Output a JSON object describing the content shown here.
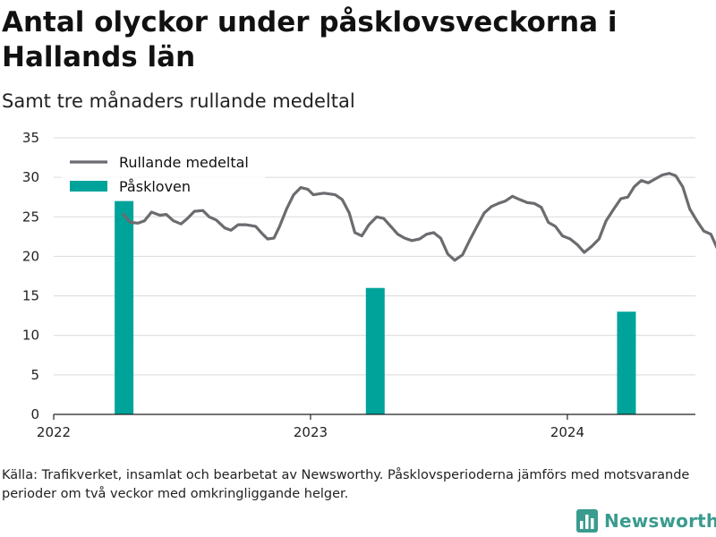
{
  "title": "Antal olyckor under påsklovsveckorna i Hallands län",
  "subtitle": "Samt tre månaders rullande medeltal",
  "source": "Källa: Trafikverket, insamlat och bearbetat av Newsworthy. Påsklovsperioderna jämförs med motsvarande perioder om två veckor med omkringliggande helger.",
  "logo": {
    "text": "Newsworthy",
    "icon": "bar-chart-logo-icon"
  },
  "colors": {
    "line": "#6b6b70",
    "bars": "#00a39a",
    "bar_highlight": "#cfe9e7",
    "grid": "#d9d9d9",
    "logo": "#3a9b8f"
  },
  "chart_data": {
    "type": "bar+line",
    "ylim": [
      0,
      35
    ],
    "yticks": [
      0,
      5,
      10,
      15,
      20,
      25,
      30,
      35
    ],
    "xlim": [
      "2022-01-01",
      "2024-07-01"
    ],
    "xticks": [
      {
        "date": "2022-01-01",
        "label": "2022"
      },
      {
        "date": "2023-01-01",
        "label": "2023"
      },
      {
        "date": "2024-01-01",
        "label": "2024"
      }
    ],
    "grid": true,
    "legend": {
      "position": "top-left",
      "entries": [
        {
          "label": "Rullande medeltal",
          "kind": "line"
        },
        {
          "label": "Påskloven",
          "kind": "bar"
        }
      ]
    },
    "bars": {
      "name": "Påskloven",
      "points": [
        {
          "date": "2022-04-11",
          "value": 27
        },
        {
          "date": "2023-04-03",
          "value": 16
        },
        {
          "date": "2024-03-25",
          "value": 13
        }
      ]
    },
    "line": {
      "name": "Rullande medeltal",
      "points": [
        [
          "2022-04-10",
          25.3
        ],
        [
          "2022-04-20",
          24.3
        ],
        [
          "2022-05-01",
          24.2
        ],
        [
          "2022-05-10",
          24.5
        ],
        [
          "2022-05-20",
          25.6
        ],
        [
          "2022-06-01",
          25.2
        ],
        [
          "2022-06-10",
          25.3
        ],
        [
          "2022-06-20",
          24.5
        ],
        [
          "2022-07-01",
          24.1
        ],
        [
          "2022-07-10",
          24.8
        ],
        [
          "2022-07-20",
          25.7
        ],
        [
          "2022-08-01",
          25.8
        ],
        [
          "2022-08-10",
          25.0
        ],
        [
          "2022-08-20",
          24.6
        ],
        [
          "2022-09-01",
          23.6
        ],
        [
          "2022-09-10",
          23.3
        ],
        [
          "2022-09-20",
          24.0
        ],
        [
          "2022-10-01",
          24.0
        ],
        [
          "2022-10-15",
          23.8
        ],
        [
          "2022-10-25",
          22.8
        ],
        [
          "2022-11-01",
          22.2
        ],
        [
          "2022-11-10",
          22.3
        ],
        [
          "2022-11-18",
          23.8
        ],
        [
          "2022-11-28",
          26.0
        ],
        [
          "2022-12-08",
          27.8
        ],
        [
          "2022-12-18",
          28.7
        ],
        [
          "2022-12-28",
          28.5
        ],
        [
          "2023-01-05",
          27.8
        ],
        [
          "2023-01-20",
          28.0
        ],
        [
          "2023-02-05",
          27.8
        ],
        [
          "2023-02-15",
          27.2
        ],
        [
          "2023-02-25",
          25.5
        ],
        [
          "2023-03-05",
          23.0
        ],
        [
          "2023-03-15",
          22.6
        ],
        [
          "2023-03-25",
          24.0
        ],
        [
          "2023-04-05",
          25.0
        ],
        [
          "2023-04-15",
          24.8
        ],
        [
          "2023-04-25",
          23.8
        ],
        [
          "2023-05-05",
          22.8
        ],
        [
          "2023-05-15",
          22.3
        ],
        [
          "2023-05-25",
          22.0
        ],
        [
          "2023-06-05",
          22.2
        ],
        [
          "2023-06-15",
          22.8
        ],
        [
          "2023-06-25",
          23.0
        ],
        [
          "2023-07-05",
          22.3
        ],
        [
          "2023-07-15",
          20.3
        ],
        [
          "2023-07-25",
          19.5
        ],
        [
          "2023-08-05",
          20.2
        ],
        [
          "2023-08-15",
          22.0
        ],
        [
          "2023-08-25",
          23.7
        ],
        [
          "2023-09-05",
          25.5
        ],
        [
          "2023-09-15",
          26.3
        ],
        [
          "2023-09-25",
          26.7
        ],
        [
          "2023-10-05",
          27.0
        ],
        [
          "2023-10-15",
          27.6
        ],
        [
          "2023-10-25",
          27.2
        ],
        [
          "2023-11-05",
          26.8
        ],
        [
          "2023-11-15",
          26.7
        ],
        [
          "2023-11-25",
          26.2
        ],
        [
          "2023-12-05",
          24.3
        ],
        [
          "2023-12-15",
          23.8
        ],
        [
          "2023-12-25",
          22.6
        ],
        [
          "2024-01-05",
          22.2
        ],
        [
          "2024-01-15",
          21.5
        ],
        [
          "2024-01-25",
          20.5
        ],
        [
          "2024-02-05",
          21.3
        ],
        [
          "2024-02-15",
          22.2
        ],
        [
          "2024-02-25",
          24.5
        ],
        [
          "2024-03-07",
          26.0
        ],
        [
          "2024-03-17",
          27.3
        ],
        [
          "2024-03-27",
          27.5
        ],
        [
          "2024-04-05",
          28.8
        ],
        [
          "2024-04-15",
          29.6
        ],
        [
          "2024-04-25",
          29.3
        ],
        [
          "2024-05-05",
          29.8
        ],
        [
          "2024-05-15",
          30.3
        ],
        [
          "2024-05-25",
          30.5
        ],
        [
          "2024-06-03",
          30.2
        ],
        [
          "2024-06-13",
          28.8
        ],
        [
          "2024-06-23",
          26.0
        ],
        [
          "2024-07-03",
          24.5
        ],
        [
          "2024-07-13",
          23.2
        ],
        [
          "2024-07-23",
          22.8
        ],
        [
          "2024-08-02",
          20.8
        ]
      ]
    }
  }
}
